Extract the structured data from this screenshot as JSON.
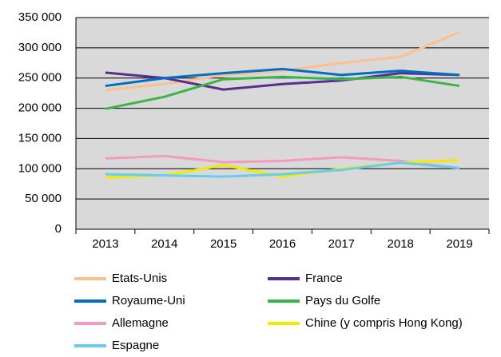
{
  "chart_data": {
    "type": "line",
    "categories": [
      "2013",
      "2014",
      "2015",
      "2016",
      "2017",
      "2018",
      "2019"
    ],
    "series": [
      {
        "name": "Etats-Unis",
        "color": "#fac090",
        "values": [
          230000,
          240000,
          255000,
          262000,
          275000,
          285000,
          326000
        ]
      },
      {
        "name": "France",
        "color": "#5b2c91",
        "values": [
          259000,
          250000,
          231000,
          240000,
          246000,
          258000,
          255000
        ]
      },
      {
        "name": "Royaume-Uni",
        "color": "#0070c0",
        "values": [
          237000,
          250000,
          258000,
          265000,
          255000,
          262000,
          255000
        ]
      },
      {
        "name": "Pays du Golfe",
        "color": "#3cb44b",
        "values": [
          199000,
          219000,
          248000,
          252000,
          248000,
          252000,
          237000
        ]
      },
      {
        "name": "Allemagne",
        "color": "#f49ac1",
        "values": [
          117000,
          121000,
          111000,
          113000,
          119000,
          113000,
          101000
        ]
      },
      {
        "name": "Chine (y compris Hong Kong)",
        "color": "#f2ea00",
        "values": [
          86000,
          89000,
          106000,
          87000,
          100000,
          110000,
          114000
        ]
      },
      {
        "name": "Espagne",
        "color": "#66ccf0",
        "values": [
          91000,
          89000,
          87000,
          91000,
          98000,
          110000,
          101000
        ]
      }
    ],
    "ylim": [
      0,
      350000
    ],
    "yticks": [
      0,
      {
        "value": 50000,
        "label": "50 000"
      },
      {
        "value": 100000,
        "label": "100 000"
      },
      {
        "value": 150000,
        "label": "150 000"
      },
      {
        "value": 200000,
        "label": "200 000"
      },
      {
        "value": 250000,
        "label": "250 000"
      },
      {
        "value": 300000,
        "label": "300 000"
      },
      {
        "value": 350000,
        "label": "350 000"
      }
    ],
    "grid": true,
    "legend": "bottom"
  }
}
